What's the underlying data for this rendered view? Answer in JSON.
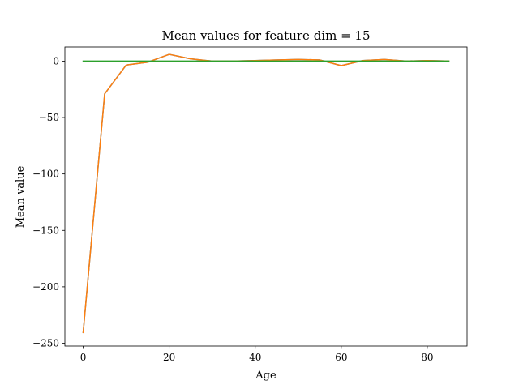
{
  "chart_data": {
    "type": "line",
    "title": "Mean values for feature dim = 15",
    "xlabel": "Age",
    "ylabel": "Mean value",
    "x": [
      0,
      5,
      10,
      15,
      20,
      25,
      30,
      35,
      40,
      45,
      50,
      55,
      60,
      65,
      70,
      75,
      80,
      85
    ],
    "xlim": [
      -4.25,
      89.25
    ],
    "ylim": [
      -252.5,
      12.5
    ],
    "xticks": [
      0,
      20,
      40,
      60,
      80
    ],
    "yticks": [
      -250,
      -200,
      -150,
      -100,
      -50,
      0
    ],
    "grid": false,
    "series": [
      {
        "color": "#1f77b4",
        "values": [
          -240.5,
          -29,
          -3.5,
          -1,
          6,
          2,
          0,
          0,
          0.5,
          1,
          1.5,
          1,
          -4,
          0.5,
          1.5,
          0,
          0.5,
          0
        ]
      },
      {
        "color": "#ff7f0e",
        "values": [
          -240.5,
          -29,
          -3.5,
          -1,
          6,
          2,
          0,
          0,
          0.5,
          1,
          1.5,
          1,
          -4,
          0.5,
          1.5,
          0,
          0.5,
          0
        ]
      },
      {
        "color": "#2ca02c",
        "values": [
          0,
          0,
          0,
          0,
          0,
          0,
          0,
          0,
          0,
          0,
          0,
          0,
          0,
          0,
          0,
          0,
          0,
          0
        ]
      }
    ]
  }
}
